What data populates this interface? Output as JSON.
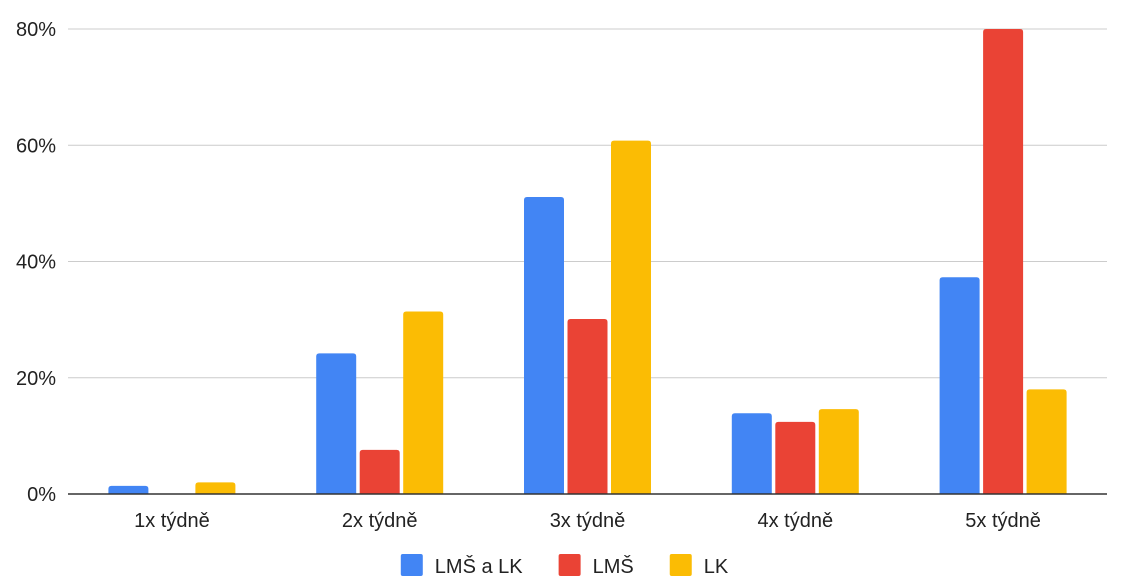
{
  "chart_data": {
    "type": "bar",
    "title": "",
    "xlabel": "",
    "ylabel": "",
    "categories": [
      "1x týdně",
      "2x týdně",
      "3x týdně",
      "4x týdně",
      "5x týdně"
    ],
    "series": [
      {
        "name": "LMŠ a LK",
        "color": "#4285f4",
        "values": [
          1.4,
          24.2,
          51.1,
          13.9,
          37.3
        ]
      },
      {
        "name": "LMŠ",
        "color": "#ea4335",
        "values": [
          0,
          7.6,
          30.1,
          12.4,
          80.0
        ]
      },
      {
        "name": "LK",
        "color": "#fbbc04",
        "values": [
          2.0,
          31.4,
          60.8,
          14.6,
          18.0
        ]
      }
    ],
    "ylim": [
      0,
      80
    ],
    "yticks": [
      0,
      20,
      40,
      60,
      80
    ],
    "ytick_labels": [
      "0%",
      "20%",
      "40%",
      "60%",
      "80%"
    ],
    "grid": true,
    "legend_position": "bottom"
  }
}
